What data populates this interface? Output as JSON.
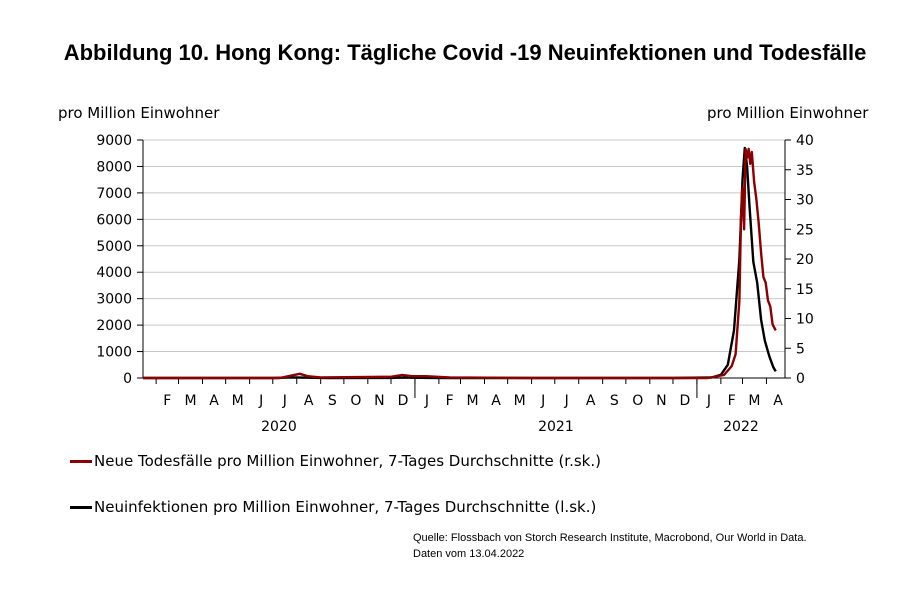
{
  "title": "Abbildung 10. Hong Kong: Tägliche Covid -19 Neuinfektionen und Todesfälle",
  "colors": {
    "deaths": "#8b0000",
    "cases": "#000000",
    "grid": "#c8c8c8"
  },
  "legend": {
    "deaths": "Neue Todesfälle pro Million Einwohner, 7-Tages Durchschnitte (r.sk.)",
    "cases": "Neuinfektionen pro Million Einwohner, 7-Tages Durchschnitte (l.sk.)"
  },
  "source": {
    "line1": "Quelle: Flossbach von Storch Research Institute, Macrobond, Our World in Data.",
    "line2": "Daten vom 13.04.2022"
  },
  "chart_data": {
    "type": "line",
    "title": "Abbildung 10. Hong Kong: Tägliche Covid -19 Neuinfektionen und Todesfälle",
    "y_left_label": "pro Million Einwohner",
    "y_right_label": "pro Million Einwohner",
    "y_left_range": [
      0,
      9000
    ],
    "y_left_ticks": [
      "0",
      "1000",
      "2000",
      "3000",
      "4000",
      "5000",
      "6000",
      "7000",
      "8000",
      "9000"
    ],
    "y_right_range": [
      0,
      40
    ],
    "y_right_ticks": [
      "0",
      "5",
      "10",
      "15",
      "20",
      "25",
      "30",
      "35",
      "40"
    ],
    "x_month_ticks": [
      "F",
      "M",
      "A",
      "M",
      "J",
      "J",
      "A",
      "S",
      "O",
      "N",
      "D",
      "J",
      "F",
      "M",
      "A",
      "M",
      "J",
      "J",
      "A",
      "S",
      "O",
      "N",
      "D",
      "J",
      "F",
      "M",
      "A"
    ],
    "x_year_labels": [
      "2020",
      "2021",
      "2022"
    ],
    "x_range": [
      "2020-01-15",
      "2022-04-25"
    ],
    "grid": "horizontal",
    "legend_position": "bottom",
    "series": [
      {
        "name": "Neuinfektionen pro Million Einwohner, 7-Tages Durchschnitte (l.sk.)",
        "axis": "left",
        "x": [
          "2020-01-15",
          "2020-07-01",
          "2020-07-20",
          "2020-08-01",
          "2020-08-15",
          "2020-09-10",
          "2020-12-01",
          "2020-12-10",
          "2020-12-25",
          "2021-01-20",
          "2021-02-20",
          "2021-06-01",
          "2021-12-01",
          "2022-01-20",
          "2022-02-01",
          "2022-02-10",
          "2022-02-18",
          "2022-02-25",
          "2022-03-01",
          "2022-03-04",
          "2022-03-07",
          "2022-03-10",
          "2022-03-15",
          "2022-03-20",
          "2022-03-25",
          "2022-03-30",
          "2022-04-05",
          "2022-04-10",
          "2022-04-13"
        ],
        "y": [
          0,
          0,
          15,
          20,
          10,
          0,
          5,
          12,
          10,
          5,
          0,
          0,
          0,
          20,
          120,
          500,
          1800,
          4500,
          7500,
          8700,
          8000,
          6500,
          4400,
          3600,
          2200,
          1400,
          800,
          400,
          250
        ]
      },
      {
        "name": "Neue Todesfälle pro Million Einwohner, 7-Tages Durchschnitte (r.sk.)",
        "axis": "right",
        "x": [
          "2020-01-15",
          "2020-07-10",
          "2020-07-25",
          "2020-08-05",
          "2020-08-15",
          "2020-09-01",
          "2020-12-01",
          "2020-12-15",
          "2020-12-28",
          "2021-01-15",
          "2021-02-15",
          "2021-06-01",
          "2022-01-15",
          "2022-02-05",
          "2022-02-15",
          "2022-02-20",
          "2022-02-25",
          "2022-02-27",
          "2022-03-01",
          "2022-03-03",
          "2022-03-05",
          "2022-03-07",
          "2022-03-09",
          "2022-03-11",
          "2022-03-13",
          "2022-03-16",
          "2022-03-19",
          "2022-03-22",
          "2022-03-25",
          "2022-03-28",
          "2022-03-31",
          "2022-04-03",
          "2022-04-06",
          "2022-04-09",
          "2022-04-13"
        ],
        "y": [
          0,
          0,
          0.4,
          0.7,
          0.3,
          0.1,
          0.2,
          0.5,
          0.3,
          0.3,
          0.1,
          0,
          0,
          0.5,
          2,
          4,
          13,
          27,
          32,
          25,
          38.5,
          37,
          38.5,
          36,
          38,
          33,
          30,
          26,
          21,
          17,
          16,
          13,
          12,
          9,
          8
        ]
      }
    ]
  }
}
